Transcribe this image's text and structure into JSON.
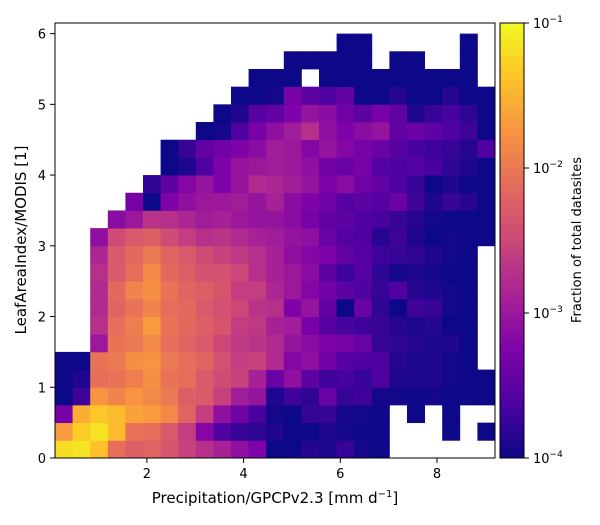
{
  "chart_data": {
    "type": "heatmap",
    "title": "",
    "xlabel_main": "Precipitation/GPCPv2.3 [mm d",
    "xlabel_sup": "−1",
    "xlabel_end": "]",
    "ylabel": "LeafAreaIndex/MODIS [1]",
    "xlim": [
      0.1,
      9.2
    ],
    "ylim": [
      0,
      6.15
    ],
    "x_ticks": [
      {
        "value": 2,
        "label": "2"
      },
      {
        "value": 4,
        "label": "4"
      },
      {
        "value": 6,
        "label": "6"
      },
      {
        "value": 8,
        "label": "8"
      }
    ],
    "y_ticks": [
      {
        "value": 0,
        "label": "0"
      },
      {
        "value": 1,
        "label": "1"
      },
      {
        "value": 2,
        "label": "2"
      },
      {
        "value": 3,
        "label": "3"
      },
      {
        "value": 4,
        "label": "4"
      },
      {
        "value": 5,
        "label": "5"
      },
      {
        "value": 6,
        "label": "6"
      }
    ],
    "x_bin_start": 0.1,
    "x_bin_width": 0.364,
    "y_bin_width": 0.25,
    "n_x_bins": 25,
    "n_y_bins": 24,
    "colorbar": {
      "label": "Fraction of total datasites",
      "scale": "log",
      "colormap": "plasma",
      "range": [
        0.0001,
        0.1
      ],
      "ticks": [
        {
          "value": 0.1,
          "base": "10",
          "exp": "−1"
        },
        {
          "value": 0.01,
          "base": "10",
          "exp": "−2"
        },
        {
          "value": 0.001,
          "base": "10",
          "exp": "−3"
        },
        {
          "value": 0.0001,
          "base": "10",
          "exp": "−4"
        }
      ]
    },
    "grid": false,
    "rows_log10": [
      [
        -1.2,
        -1.15,
        -1.4,
        -2.1,
        -2.25,
        -2.2,
        -2.35,
        -2.55,
        -2.75,
        -2.9,
        -3.1,
        -3.25,
        -4.0,
        -4.0,
        -3.85,
        -3.9,
        -3.75,
        -3.95,
        -4.0,
        null,
        null,
        null,
        null,
        null,
        null
      ],
      [
        -1.7,
        -1.3,
        -1.15,
        -1.45,
        -2.05,
        -2.1,
        -2.3,
        -2.6,
        -3.2,
        -3.6,
        -3.75,
        -3.8,
        -3.9,
        -4.0,
        -4.0,
        -3.9,
        -3.95,
        -4.0,
        -4.0,
        null,
        null,
        null,
        -4.0,
        null,
        -4.0
      ],
      [
        -3.3,
        -1.55,
        -1.35,
        -1.45,
        -1.65,
        -1.7,
        -1.85,
        -2.2,
        -2.6,
        -3.1,
        -3.35,
        -3.65,
        -3.95,
        -4.0,
        -3.75,
        -3.75,
        -3.95,
        -3.95,
        -4.0,
        null,
        -4.0,
        null,
        -4.0,
        null,
        null
      ],
      [
        -4.0,
        -3.7,
        -1.75,
        -1.9,
        -1.75,
        -1.85,
        -2.0,
        -2.25,
        -2.3,
        -2.55,
        -2.95,
        -3.05,
        -3.9,
        -3.7,
        -3.8,
        -3.4,
        -3.75,
        -3.7,
        -3.95,
        -3.95,
        -4.0,
        -3.95,
        -4.0,
        -4.0,
        -4.0
      ],
      [
        -4.0,
        -3.9,
        -2.1,
        -2.05,
        -1.95,
        -1.8,
        -2.05,
        -2.1,
        -2.3,
        -2.45,
        -2.55,
        -2.9,
        -3.4,
        -3.1,
        -3.5,
        -3.7,
        -3.65,
        -3.75,
        -3.6,
        -3.9,
        -3.9,
        -3.9,
        -3.95,
        -4.0,
        -4.0
      ],
      [
        -4.0,
        -4.0,
        -2.05,
        -2.0,
        -1.8,
        -1.75,
        -2.0,
        -2.1,
        -2.2,
        -2.4,
        -2.6,
        -2.55,
        -2.8,
        -3.2,
        -3.1,
        -3.35,
        -3.55,
        -3.6,
        -3.6,
        -3.85,
        -3.9,
        -3.9,
        -3.95,
        -4.0,
        null
      ],
      [
        null,
        null,
        -3.0,
        -2.05,
        -2.0,
        -1.85,
        -2.1,
        -2.2,
        -2.3,
        -2.5,
        -2.65,
        -2.7,
        -2.8,
        -3.05,
        -3.15,
        -3.25,
        -3.3,
        -3.4,
        -3.75,
        -3.8,
        -3.85,
        -3.9,
        -3.9,
        -4.0,
        null
      ],
      [
        null,
        null,
        -2.75,
        -2.1,
        -1.95,
        -1.7,
        -2.05,
        -2.15,
        -2.25,
        -2.35,
        -2.6,
        -2.65,
        -2.9,
        -2.95,
        -3.3,
        -3.55,
        -3.65,
        -3.7,
        -3.75,
        -3.85,
        -3.9,
        -3.85,
        -4.0,
        -4.0,
        null
      ],
      [
        null,
        null,
        -2.8,
        -2.2,
        -2.05,
        -1.9,
        -2.1,
        -2.15,
        -2.3,
        -2.4,
        -2.5,
        -2.7,
        -2.75,
        -3.25,
        -3.05,
        -3.45,
        -4.0,
        -3.4,
        -3.8,
        -4.0,
        -3.7,
        -3.75,
        -3.95,
        -4.0,
        null
      ],
      [
        null,
        null,
        -2.8,
        -2.15,
        -1.9,
        -1.8,
        -2.05,
        -2.2,
        -2.25,
        -2.35,
        -2.6,
        -2.6,
        -2.85,
        -3.0,
        -3.2,
        -3.35,
        -3.5,
        -3.6,
        -3.75,
        -3.6,
        -3.85,
        -3.9,
        -3.95,
        -4.0,
        null
      ],
      [
        null,
        null,
        -2.75,
        -2.3,
        -2.1,
        -1.85,
        -2.15,
        -2.25,
        -2.4,
        -2.4,
        -2.5,
        -2.75,
        -2.9,
        -3.0,
        -3.15,
        -3.5,
        -3.7,
        -3.55,
        -3.8,
        -3.95,
        -3.9,
        -3.95,
        -4.0,
        -4.0,
        null
      ],
      [
        null,
        null,
        -2.85,
        -2.3,
        -2.15,
        -2.0,
        -2.2,
        -2.3,
        -2.45,
        -2.55,
        -2.65,
        -2.75,
        -2.9,
        -3.1,
        -3.2,
        -3.25,
        -3.45,
        -3.55,
        -3.7,
        -3.75,
        -3.8,
        -3.9,
        -3.95,
        -4.0,
        null
      ],
      [
        null,
        null,
        -3.1,
        -2.45,
        -2.3,
        -2.25,
        -2.45,
        -2.6,
        -2.75,
        -2.7,
        -2.8,
        -2.9,
        -2.95,
        -3.05,
        -3.1,
        -3.4,
        -3.55,
        -3.6,
        -3.85,
        -3.7,
        -3.9,
        -4.0,
        -3.95,
        -4.0,
        -4.0
      ],
      [
        null,
        null,
        null,
        -3.15,
        -3.0,
        -2.7,
        -2.75,
        -2.85,
        -2.95,
        -2.9,
        -3.0,
        -3.05,
        -3.05,
        -3.15,
        -3.3,
        -3.45,
        -3.5,
        -3.6,
        -3.65,
        -3.75,
        -3.85,
        -3.95,
        -4.0,
        -4.0,
        -4.0
      ],
      [
        null,
        null,
        null,
        null,
        -3.3,
        -4.0,
        -3.25,
        -3.1,
        -3.0,
        -3.0,
        -2.95,
        -3.05,
        -2.9,
        -3.15,
        -3.25,
        -3.35,
        -3.55,
        -3.5,
        -3.55,
        -3.4,
        -3.7,
        -3.9,
        -3.75,
        -3.85,
        -4.0
      ],
      [
        null,
        null,
        null,
        null,
        null,
        -3.8,
        -3.5,
        -3.2,
        -3.05,
        -3.25,
        -3.05,
        -2.8,
        -2.85,
        -2.95,
        -3.05,
        -3.25,
        -3.15,
        -3.35,
        -3.45,
        -3.6,
        -3.75,
        -4.0,
        -3.9,
        -4.0,
        -4.0
      ],
      [
        null,
        null,
        null,
        null,
        null,
        null,
        -4.0,
        -3.9,
        -3.6,
        -3.25,
        -3.05,
        -3.0,
        -2.95,
        -3.0,
        -3.1,
        -3.35,
        -3.4,
        -3.3,
        -3.55,
        -3.6,
        -3.55,
        -3.65,
        -3.8,
        -3.9,
        -4.0
      ],
      [
        null,
        null,
        null,
        null,
        null,
        null,
        -4.0,
        -3.75,
        -3.45,
        -3.35,
        -3.25,
        -3.15,
        -2.95,
        -3.0,
        -3.2,
        -3.05,
        -3.2,
        -3.3,
        -3.4,
        -3.55,
        -3.65,
        -3.7,
        -3.75,
        -3.85,
        -3.6
      ],
      [
        null,
        null,
        null,
        null,
        null,
        null,
        null,
        null,
        -4.0,
        -3.95,
        -3.6,
        -3.3,
        -3.1,
        -2.95,
        -2.75,
        -3.1,
        -3.25,
        -3.15,
        -3.05,
        -3.45,
        -3.4,
        -3.5,
        -3.6,
        -3.7,
        -4.0
      ],
      [
        null,
        null,
        null,
        null,
        null,
        null,
        null,
        null,
        null,
        -4.0,
        -3.9,
        -3.55,
        -3.45,
        -3.25,
        -3.05,
        -3.15,
        -3.35,
        -3.5,
        -3.3,
        -3.45,
        -3.9,
        -3.75,
        -3.65,
        -3.8,
        -4.0
      ],
      [
        null,
        null,
        null,
        null,
        null,
        null,
        null,
        null,
        null,
        null,
        -4.0,
        -4.0,
        -3.95,
        -3.3,
        -3.5,
        -3.6,
        -3.45,
        -4.0,
        -4.0,
        -3.85,
        -4.0,
        -4.0,
        -3.85,
        -4.0,
        -4.0
      ],
      [
        null,
        null,
        null,
        null,
        null,
        null,
        null,
        null,
        null,
        null,
        null,
        -4.0,
        -4.0,
        -4.0,
        null,
        -4.0,
        -4.0,
        -4.0,
        -4.0,
        -4.0,
        -4.0,
        -4.0,
        -4.0,
        -4.0,
        null
      ],
      [
        null,
        null,
        null,
        null,
        null,
        null,
        null,
        null,
        null,
        null,
        null,
        null,
        null,
        -4.0,
        -4.0,
        -4.0,
        -4.0,
        -4.0,
        null,
        -4.0,
        -4.0,
        null,
        null,
        -4.0,
        null
      ],
      [
        null,
        null,
        null,
        null,
        null,
        null,
        null,
        null,
        null,
        null,
        null,
        null,
        null,
        null,
        null,
        null,
        -4.0,
        -4.0,
        null,
        null,
        null,
        null,
        null,
        -4.0,
        null
      ]
    ]
  }
}
